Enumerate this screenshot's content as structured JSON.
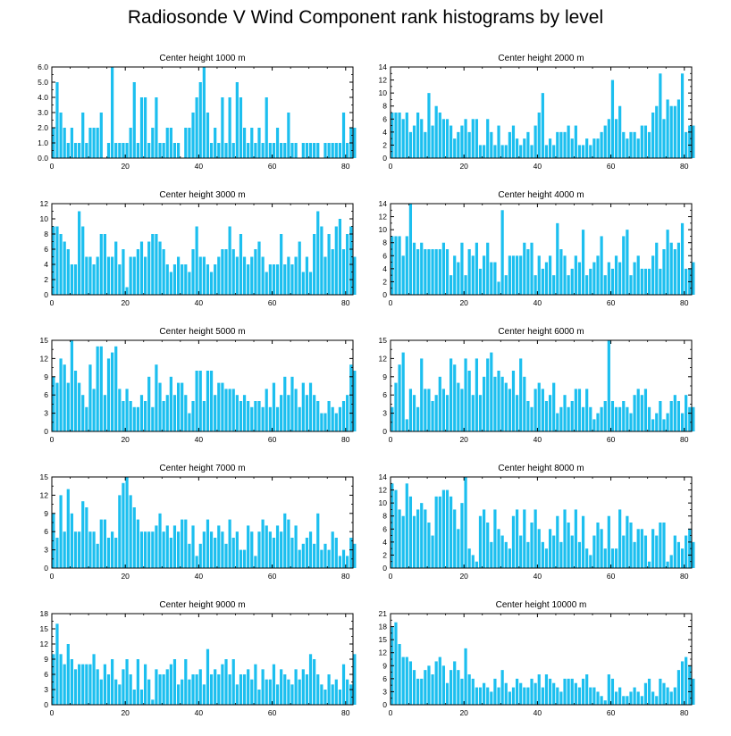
{
  "title": "Radiosonde V Wind Component rank histograms by level",
  "colors": {
    "bar": "#1cbfef",
    "axis": "#000000",
    "background": "#ffffff"
  },
  "chart_data": [
    {
      "type": "bar",
      "title": "Center height 1000 m",
      "xlim": [
        0,
        82
      ],
      "xticks": [
        0,
        20,
        40,
        60,
        80
      ],
      "xtick_labels": [
        "0",
        "20",
        "40",
        "60",
        "80"
      ],
      "ylim": [
        0,
        6
      ],
      "yticks": [
        0,
        1,
        2,
        3,
        4,
        5,
        6
      ],
      "ytick_labels": [
        "0.0",
        "1.0",
        "2.0",
        "3.0",
        "4.0",
        "5.0",
        "6.0"
      ],
      "values": [
        2,
        5,
        3,
        2,
        1,
        2,
        1,
        1,
        3,
        1,
        2,
        2,
        2,
        3,
        0,
        1,
        6,
        1,
        1,
        1,
        1,
        2,
        5,
        1,
        4,
        4,
        1,
        2,
        4,
        1,
        1,
        2,
        2,
        1,
        1,
        0,
        2,
        2,
        3,
        4,
        5,
        6,
        3,
        1,
        2,
        1,
        4,
        1,
        4,
        1,
        5,
        4,
        2,
        1,
        2,
        1,
        2,
        1,
        4,
        1,
        1,
        2,
        1,
        1,
        3,
        1,
        1,
        0,
        1,
        1,
        1,
        1,
        1,
        0,
        1,
        1,
        1,
        1,
        1,
        3,
        1,
        2,
        2
      ]
    },
    {
      "type": "bar",
      "title": "Center height 2000 m",
      "xlim": [
        0,
        82
      ],
      "xticks": [
        0,
        20,
        40,
        60,
        80
      ],
      "xtick_labels": [
        "0",
        "20",
        "40",
        "60",
        "80"
      ],
      "ylim": [
        0,
        14
      ],
      "yticks": [
        0,
        2,
        4,
        6,
        8,
        10,
        12,
        14
      ],
      "ytick_labels": [
        "0",
        "2",
        "4",
        "6",
        "8",
        "10",
        "12",
        "14"
      ],
      "values": [
        7,
        7,
        7,
        6,
        7,
        4,
        5,
        7,
        6,
        4,
        10,
        5,
        8,
        7,
        6,
        6,
        5,
        3,
        4,
        5,
        6,
        4,
        6,
        6,
        2,
        2,
        6,
        4,
        2,
        5,
        2,
        2,
        4,
        5,
        3,
        2,
        3,
        4,
        2,
        5,
        7,
        10,
        2,
        3,
        2,
        4,
        4,
        4,
        5,
        3,
        5,
        2,
        2,
        3,
        2,
        3,
        3,
        4,
        5,
        6,
        12,
        6,
        8,
        4,
        3,
        4,
        4,
        3,
        5,
        5,
        4,
        7,
        8,
        13,
        6,
        9,
        8,
        8,
        9,
        13,
        4,
        5,
        5
      ]
    },
    {
      "type": "bar",
      "title": "Center height 3000 m",
      "xlim": [
        0,
        82
      ],
      "xticks": [
        0,
        20,
        40,
        60,
        80
      ],
      "xtick_labels": [
        "0",
        "20",
        "40",
        "60",
        "80"
      ],
      "ylim": [
        0,
        12
      ],
      "yticks": [
        0,
        2,
        4,
        6,
        8,
        10,
        12
      ],
      "ytick_labels": [
        "0",
        "2",
        "4",
        "6",
        "8",
        "10",
        "12"
      ],
      "values": [
        9,
        9,
        8,
        7,
        6,
        4,
        4,
        11,
        9,
        5,
        5,
        4,
        5,
        8,
        8,
        5,
        5,
        7,
        4,
        6,
        1,
        5,
        5,
        6,
        7,
        5,
        7,
        8,
        8,
        7,
        6,
        4,
        3,
        4,
        5,
        4,
        4,
        3,
        6,
        9,
        5,
        5,
        4,
        3,
        4,
        5,
        6,
        6,
        9,
        6,
        5,
        8,
        5,
        4,
        5,
        6,
        7,
        5,
        3,
        4,
        4,
        4,
        8,
        4,
        5,
        4,
        5,
        7,
        3,
        5,
        3,
        8,
        11,
        9,
        5,
        8,
        6,
        9,
        10,
        6,
        8,
        9,
        5
      ]
    },
    {
      "type": "bar",
      "title": "Center height 4000 m",
      "xlim": [
        0,
        82
      ],
      "xticks": [
        0,
        20,
        40,
        60,
        80
      ],
      "xtick_labels": [
        "0",
        "20",
        "40",
        "60",
        "80"
      ],
      "ylim": [
        0,
        14
      ],
      "yticks": [
        0,
        2,
        4,
        6,
        8,
        10,
        12,
        14
      ],
      "ytick_labels": [
        "0",
        "2",
        "4",
        "6",
        "8",
        "10",
        "12",
        "14"
      ],
      "values": [
        9,
        9,
        9,
        6,
        9,
        14,
        8,
        7,
        8,
        7,
        7,
        7,
        7,
        7,
        8,
        7,
        3,
        6,
        5,
        8,
        3,
        7,
        6,
        8,
        4,
        6,
        8,
        5,
        5,
        2,
        13,
        3,
        6,
        6,
        6,
        6,
        8,
        7,
        8,
        3,
        6,
        4,
        5,
        6,
        3,
        11,
        7,
        6,
        3,
        4,
        6,
        5,
        10,
        3,
        4,
        5,
        6,
        9,
        3,
        5,
        4,
        6,
        5,
        9,
        10,
        3,
        5,
        6,
        4,
        4,
        4,
        6,
        8,
        4,
        7,
        10,
        8,
        7,
        8,
        11,
        4,
        4,
        5
      ]
    },
    {
      "type": "bar",
      "title": "Center height 5000 m",
      "xlim": [
        0,
        82
      ],
      "xticks": [
        0,
        20,
        40,
        60,
        80
      ],
      "xtick_labels": [
        "0",
        "20",
        "40",
        "60",
        "80"
      ],
      "ylim": [
        0,
        15
      ],
      "yticks": [
        0,
        3,
        6,
        9,
        12,
        15
      ],
      "ytick_labels": [
        "0",
        "3",
        "6",
        "9",
        "12",
        "15"
      ],
      "values": [
        9,
        8,
        12,
        11,
        8,
        15,
        10,
        8,
        6,
        4,
        11,
        7,
        14,
        14,
        6,
        12,
        13,
        14,
        7,
        5,
        7,
        5,
        4,
        4,
        6,
        5,
        9,
        4,
        11,
        8,
        5,
        6,
        9,
        6,
        8,
        8,
        6,
        3,
        5,
        10,
        10,
        5,
        10,
        10,
        6,
        8,
        8,
        7,
        7,
        7,
        6,
        5,
        6,
        5,
        4,
        5,
        5,
        4,
        7,
        4,
        8,
        4,
        6,
        9,
        6,
        9,
        7,
        4,
        8,
        6,
        8,
        6,
        5,
        3,
        3,
        5,
        4,
        3,
        4,
        5,
        6,
        11,
        10
      ]
    },
    {
      "type": "bar",
      "title": "Center height 6000 m",
      "xlim": [
        0,
        82
      ],
      "xticks": [
        0,
        20,
        40,
        60,
        80
      ],
      "xtick_labels": [
        "0",
        "20",
        "40",
        "60",
        "80"
      ],
      "ylim": [
        0,
        15
      ],
      "yticks": [
        0,
        3,
        6,
        9,
        12,
        15
      ],
      "ytick_labels": [
        "0",
        "3",
        "6",
        "9",
        "12",
        "15"
      ],
      "values": [
        4,
        8,
        11,
        13,
        2,
        7,
        6,
        4,
        12,
        7,
        7,
        5,
        6,
        9,
        7,
        6,
        12,
        11,
        8,
        7,
        12,
        10,
        6,
        12,
        6,
        9,
        12,
        13,
        9,
        10,
        9,
        8,
        7,
        10,
        6,
        12,
        9,
        5,
        4,
        7,
        8,
        7,
        5,
        6,
        8,
        3,
        4,
        6,
        4,
        5,
        7,
        7,
        4,
        7,
        4,
        2,
        3,
        4,
        5,
        15,
        5,
        4,
        4,
        5,
        4,
        3,
        6,
        7,
        6,
        7,
        4,
        2,
        3,
        5,
        2,
        3,
        5,
        6,
        5,
        3,
        6,
        4,
        4
      ]
    },
    {
      "type": "bar",
      "title": "Center height 7000 m",
      "xlim": [
        0,
        82
      ],
      "xticks": [
        0,
        20,
        40,
        60,
        80
      ],
      "xtick_labels": [
        "0",
        "20",
        "40",
        "60",
        "80"
      ],
      "ylim": [
        0,
        15
      ],
      "yticks": [
        0,
        3,
        6,
        9,
        12,
        15
      ],
      "ytick_labels": [
        "0",
        "3",
        "6",
        "9",
        "12",
        "15"
      ],
      "values": [
        9,
        5,
        12,
        6,
        13,
        9,
        6,
        6,
        11,
        10,
        6,
        6,
        4,
        8,
        8,
        5,
        6,
        5,
        12,
        14,
        15,
        12,
        10,
        8,
        6,
        6,
        6,
        6,
        7,
        9,
        6,
        7,
        5,
        7,
        6,
        8,
        8,
        4,
        7,
        2,
        4,
        6,
        8,
        6,
        5,
        7,
        6,
        4,
        8,
        5,
        6,
        3,
        3,
        7,
        6,
        2,
        6,
        8,
        7,
        6,
        5,
        7,
        6,
        9,
        8,
        5,
        7,
        3,
        4,
        5,
        6,
        4,
        9,
        3,
        4,
        3,
        6,
        5,
        2,
        3,
        2,
        5,
        4
      ]
    },
    {
      "type": "bar",
      "title": "Center height 8000 m",
      "xlim": [
        0,
        82
      ],
      "xticks": [
        0,
        20,
        40,
        60,
        80
      ],
      "xtick_labels": [
        "0",
        "20",
        "40",
        "60",
        "80"
      ],
      "ylim": [
        0,
        14
      ],
      "yticks": [
        0,
        2,
        4,
        6,
        8,
        10,
        12,
        14
      ],
      "ytick_labels": [
        "0",
        "2",
        "4",
        "6",
        "8",
        "10",
        "12",
        "14"
      ],
      "values": [
        13,
        12,
        9,
        8,
        13,
        11,
        8,
        9,
        10,
        9,
        7,
        5,
        11,
        11,
        12,
        12,
        11,
        9,
        6,
        10,
        14,
        3,
        2,
        1,
        8,
        9,
        7,
        4,
        9,
        6,
        5,
        4,
        3,
        8,
        9,
        5,
        9,
        4,
        7,
        9,
        6,
        4,
        3,
        6,
        5,
        8,
        4,
        9,
        7,
        5,
        9,
        4,
        8,
        3,
        2,
        5,
        7,
        6,
        3,
        8,
        3,
        3,
        9,
        5,
        8,
        7,
        4,
        6,
        6,
        5,
        1,
        6,
        5,
        7,
        7,
        1,
        2,
        5,
        4,
        3,
        5,
        6,
        4
      ]
    },
    {
      "type": "bar",
      "title": "Center height 9000 m",
      "xlim": [
        0,
        82
      ],
      "xticks": [
        0,
        20,
        40,
        60,
        80
      ],
      "xtick_labels": [
        "0",
        "20",
        "40",
        "60",
        "80"
      ],
      "ylim": [
        0,
        18
      ],
      "yticks": [
        0,
        3,
        6,
        9,
        12,
        15,
        18
      ],
      "ytick_labels": [
        "0",
        "3",
        "6",
        "9",
        "12",
        "15",
        "18"
      ],
      "values": [
        10,
        16,
        10,
        8,
        12,
        9,
        7,
        8,
        8,
        8,
        8,
        10,
        7,
        5,
        8,
        6,
        9,
        5,
        4,
        7,
        9,
        6,
        3,
        9,
        3,
        8,
        5,
        1,
        7,
        6,
        6,
        7,
        8,
        9,
        4,
        5,
        9,
        5,
        6,
        6,
        7,
        4,
        11,
        6,
        7,
        6,
        8,
        9,
        6,
        9,
        4,
        6,
        6,
        7,
        5,
        8,
        3,
        7,
        5,
        5,
        8,
        4,
        7,
        6,
        5,
        4,
        7,
        5,
        7,
        6,
        10,
        9,
        6,
        4,
        3,
        6,
        4,
        5,
        3,
        8,
        5,
        4,
        10
      ]
    },
    {
      "type": "bar",
      "title": "Center height 10000 m",
      "xlim": [
        0,
        82
      ],
      "xticks": [
        0,
        20,
        40,
        60,
        80
      ],
      "xtick_labels": [
        "0",
        "20",
        "40",
        "60",
        "80"
      ],
      "ylim": [
        0,
        21
      ],
      "yticks": [
        0,
        3,
        6,
        9,
        12,
        15,
        18,
        21
      ],
      "ytick_labels": [
        "0",
        "3",
        "6",
        "9",
        "12",
        "15",
        "18",
        "21"
      ],
      "values": [
        18,
        19,
        14,
        11,
        11,
        10,
        8,
        6,
        6,
        8,
        9,
        7,
        10,
        11,
        9,
        5,
        8,
        10,
        8,
        6,
        13,
        7,
        6,
        4,
        4,
        5,
        4,
        3,
        6,
        4,
        8,
        5,
        3,
        4,
        6,
        5,
        4,
        4,
        6,
        5,
        7,
        4,
        7,
        6,
        5,
        4,
        3,
        6,
        6,
        6,
        5,
        4,
        6,
        7,
        4,
        4,
        3,
        2,
        1,
        7,
        6,
        3,
        4,
        2,
        2,
        3,
        4,
        3,
        2,
        5,
        6,
        3,
        2,
        6,
        5,
        4,
        3,
        4,
        8,
        10,
        11,
        9,
        6
      ]
    }
  ]
}
